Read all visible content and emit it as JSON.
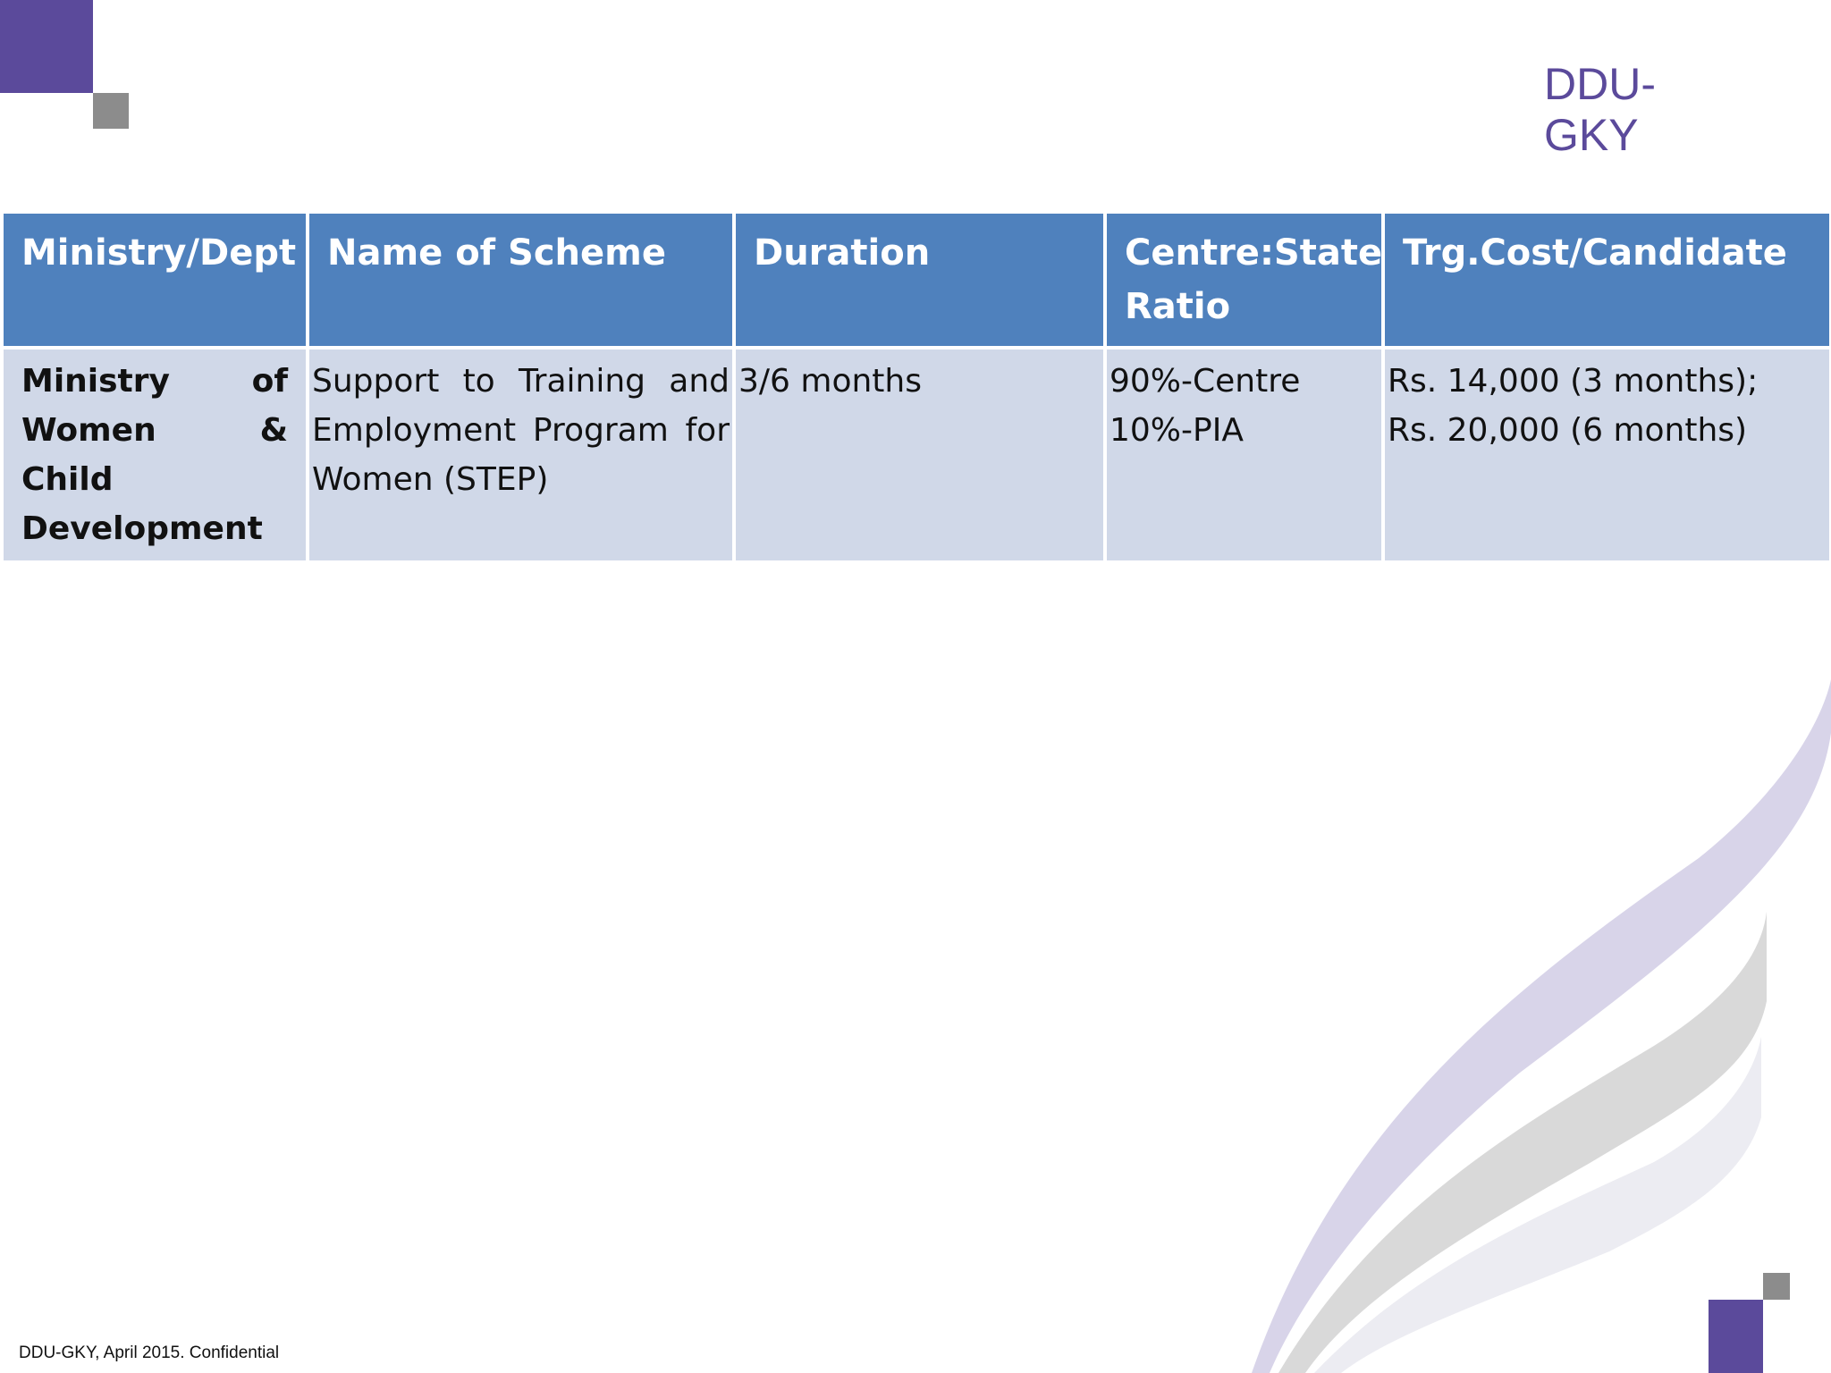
{
  "header": {
    "logo_text": "DDU-GKY"
  },
  "table": {
    "columns": [
      "Ministry/Dept",
      "Name of Scheme",
      "Duration",
      "Centre:State Ratio",
      "Trg.Cost/Candidate"
    ],
    "rows": [
      [
        "Ministry of Women & Child Development",
        "Support to Training and Employment Program for Women (STEP)",
        "3/6 months",
        [
          "90%-Centre",
          "10%-PIA"
        ],
        [
          "Rs. 14,000 (3 months);",
          "Rs. 20,000 (6 months)"
        ]
      ]
    ]
  },
  "footer": {
    "text": "DDU-GKY, April 2015. Confidential"
  }
}
